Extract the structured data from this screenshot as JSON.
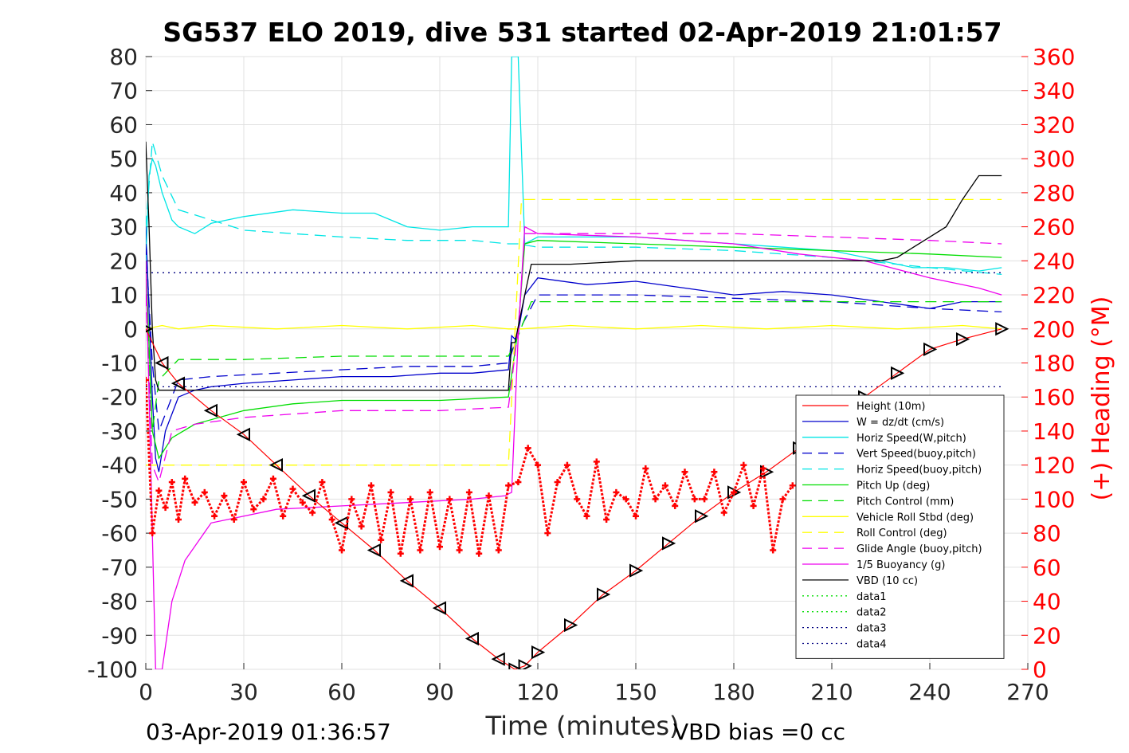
{
  "chart_data": {
    "type": "line",
    "title": "SG537 ELO 2019, dive 531 started 02-Apr-2019 21:01:57",
    "xlabel": "Time (minutes)",
    "ylabel_right": "(+) Heading (°M)",
    "footer_left": "03-Apr-2019 01:36:57",
    "footer_right": "VBD bias =0 cc",
    "xlim": [
      0,
      270
    ],
    "ylim": [
      -100,
      80
    ],
    "ylim_right": [
      0,
      360
    ],
    "x_ticks": [
      0,
      30,
      60,
      90,
      120,
      150,
      180,
      210,
      240,
      270
    ],
    "y_ticks": [
      80,
      70,
      60,
      50,
      40,
      30,
      20,
      10,
      0,
      -10,
      -20,
      -30,
      -40,
      -50,
      -60,
      -70,
      -80,
      -90,
      -100
    ],
    "y_ticks_right": [
      360,
      340,
      320,
      300,
      280,
      260,
      240,
      220,
      200,
      180,
      160,
      140,
      120,
      100,
      80,
      60,
      40,
      20,
      0
    ],
    "grid": true,
    "legend_position": "lower-right",
    "colors": {
      "heading": "#ff0000",
      "right_axis": "#ff0000"
    },
    "series": [
      {
        "name": "Height (10m)",
        "color": "#ff0000",
        "style": "solid",
        "x": [],
        "y": []
      },
      {
        "name": "W = dz/dt (cm/s)",
        "color": "#0000cc",
        "style": "solid",
        "x": [
          0,
          1,
          2,
          3,
          4,
          6,
          10,
          15,
          20,
          30,
          45,
          60,
          75,
          90,
          100,
          111,
          112,
          113,
          114,
          116,
          120,
          135,
          150,
          165,
          180,
          195,
          210,
          225,
          240,
          250,
          262
        ],
        "y": [
          30,
          5,
          -20,
          -38,
          -42,
          -30,
          -20,
          -18,
          -17,
          -16,
          -15,
          -14,
          -14,
          -13,
          -13,
          -12,
          -2,
          -3,
          -1,
          10,
          15,
          13,
          14,
          12,
          10,
          11,
          10,
          8,
          6,
          8,
          8
        ]
      },
      {
        "name": "Horiz Speed(W,pitch)",
        "color": "#00e5e5",
        "style": "solid",
        "x": [
          0,
          1,
          2,
          3,
          5,
          8,
          10,
          15,
          20,
          30,
          45,
          60,
          70,
          80,
          90,
          100,
          111,
          112,
          113,
          114,
          116,
          120,
          135,
          150,
          165,
          180,
          195,
          210,
          225,
          235,
          245,
          255,
          262
        ],
        "y": [
          20,
          45,
          50,
          48,
          40,
          32,
          30,
          28,
          31,
          33,
          35,
          34,
          34,
          30,
          29,
          30,
          30,
          80,
          80,
          80,
          25,
          27,
          27,
          27,
          26,
          25,
          24,
          23,
          20,
          18,
          18,
          17,
          18
        ]
      },
      {
        "name": "Vert Speed(buoy,pitch)",
        "color": "#0000cc",
        "style": "dash",
        "x": [
          0,
          2,
          4,
          6,
          10,
          20,
          40,
          60,
          80,
          100,
          111,
          114,
          120,
          150,
          180,
          210,
          240,
          262
        ],
        "y": [
          25,
          -10,
          -30,
          -25,
          -15,
          -14,
          -13,
          -12,
          -11,
          -11,
          -10,
          -1,
          10,
          10,
          9,
          8,
          6,
          5
        ]
      },
      {
        "name": "Horiz Speed(buoy,pitch)",
        "color": "#00e5e5",
        "style": "dash",
        "x": [
          0,
          2,
          5,
          10,
          20,
          30,
          45,
          60,
          80,
          100,
          111,
          114,
          120,
          150,
          180,
          210,
          240,
          262
        ],
        "y": [
          30,
          55,
          45,
          35,
          32,
          29,
          28,
          27,
          26,
          26,
          25,
          25,
          24,
          24,
          23,
          21,
          18,
          16
        ]
      },
      {
        "name": "Pitch Up (deg)",
        "color": "#00dd00",
        "style": "solid",
        "x": [
          0,
          2,
          4,
          8,
          15,
          30,
          45,
          60,
          90,
          111,
          114,
          116,
          120,
          150,
          180,
          210,
          240,
          262
        ],
        "y": [
          20,
          -30,
          -38,
          -32,
          -28,
          -24,
          -22,
          -21,
          -21,
          -20,
          0,
          25,
          26,
          25,
          24,
          23,
          22,
          21
        ]
      },
      {
        "name": "Pitch Control (mm)",
        "color": "#00dd00",
        "style": "dash",
        "x": [
          0,
          2,
          4,
          10,
          30,
          60,
          90,
          111,
          114,
          118,
          150,
          180,
          210,
          240,
          262
        ],
        "y": [
          10,
          -30,
          -15,
          -9,
          -9,
          -8,
          -8,
          -8,
          -2,
          8,
          8,
          8,
          8,
          8,
          8
        ]
      },
      {
        "name": "Vehicle Roll Stbd (deg)",
        "color": "#ffff00",
        "style": "solid",
        "x": [
          0,
          5,
          10,
          20,
          40,
          60,
          80,
          100,
          111,
          115,
          130,
          150,
          170,
          190,
          210,
          230,
          250,
          262
        ],
        "y": [
          0,
          1,
          0,
          1,
          0,
          1,
          0,
          1,
          0,
          0,
          1,
          0,
          1,
          0,
          1,
          0,
          1,
          0
        ]
      },
      {
        "name": "Roll Control (deg)",
        "color": "#ffff00",
        "style": "dash",
        "x": [
          0,
          20,
          40,
          60,
          80,
          100,
          111,
          115,
          130,
          150,
          170,
          190,
          210,
          230,
          250,
          262
        ],
        "y": [
          -40,
          -40,
          -40,
          -40,
          -40,
          -40,
          -40,
          38,
          38,
          38,
          38,
          38,
          38,
          38,
          38,
          38
        ]
      },
      {
        "name": "Glide Angle (buoy,pitch)",
        "color": "#ee00ee",
        "style": "dash",
        "x": [
          0,
          2,
          4,
          8,
          15,
          30,
          45,
          60,
          90,
          111,
          114,
          116,
          120,
          150,
          180,
          210,
          240,
          262
        ],
        "y": [
          10,
          -40,
          -45,
          -30,
          -28,
          -26,
          -25,
          -24,
          -24,
          -23,
          0,
          28,
          28,
          28,
          28,
          27,
          26,
          25
        ]
      },
      {
        "name": "1/5 Buoyancy (g)",
        "color": "#ee00ee",
        "style": "solid",
        "x": [
          0,
          2,
          3,
          5,
          8,
          12,
          20,
          40,
          60,
          80,
          100,
          110,
          112,
          114,
          116,
          120,
          150,
          180,
          200,
          220,
          240,
          255,
          262
        ],
        "y": [
          20,
          -60,
          -100,
          -100,
          -80,
          -68,
          -57,
          -53,
          -52,
          -51,
          -50,
          -49,
          -48,
          -2,
          30,
          28,
          27,
          25,
          22,
          20,
          15,
          12,
          10
        ]
      },
      {
        "name": "VBD (10 cc)",
        "color": "#000000",
        "style": "solid",
        "x": [
          0,
          1,
          2,
          3,
          4,
          10,
          50,
          100,
          111,
          112,
          113,
          116,
          118,
          120,
          130,
          150,
          180,
          210,
          225,
          230,
          235,
          240,
          245,
          250,
          255,
          262
        ],
        "y": [
          55,
          30,
          0,
          -15,
          -18,
          -18,
          -18,
          -18,
          -18,
          -4,
          -4,
          10,
          19,
          19,
          19,
          20,
          20,
          20,
          20,
          21,
          24,
          27,
          30,
          38,
          45,
          45
        ]
      },
      {
        "name": "data1",
        "color": "#00dd00",
        "style": "dot",
        "x": [],
        "y": []
      },
      {
        "name": "data2",
        "color": "#00dd00",
        "style": "dot",
        "x": [],
        "y": []
      },
      {
        "name": "data3",
        "color": "#000080",
        "style": "dot",
        "x": [
          0,
          262
        ],
        "y": [
          -17,
          -17
        ]
      },
      {
        "name": "data4",
        "color": "#000080",
        "style": "dot",
        "x": [
          0,
          262
        ],
        "y": [
          16.5,
          16.5
        ]
      }
    ],
    "depth_profile": {
      "color": "#ff0000",
      "marker_color": "#000000",
      "x": [
        0,
        5,
        10,
        20,
        30,
        40,
        50,
        60,
        70,
        80,
        90,
        100,
        108,
        113,
        116,
        120,
        130,
        140,
        150,
        160,
        170,
        180,
        190,
        200,
        210,
        220,
        230,
        240,
        250,
        262
      ],
      "y": [
        0,
        -10,
        -16,
        -24,
        -31,
        -40,
        -49,
        -57,
        -65,
        -74,
        -82,
        -91,
        -97,
        -100,
        -99,
        -95,
        -87,
        -78,
        -71,
        -63,
        -55,
        -48,
        -42,
        -35,
        -27,
        -20,
        -13,
        -6,
        -3,
        0
      ]
    },
    "heading": {
      "axis": "right",
      "color": "#ff0000",
      "marker": "+",
      "x": [
        0,
        2,
        4,
        6,
        8,
        10,
        12,
        15,
        18,
        21,
        24,
        27,
        30,
        33,
        36,
        39,
        42,
        45,
        48,
        51,
        54,
        57,
        60,
        63,
        66,
        69,
        72,
        75,
        78,
        81,
        84,
        87,
        90,
        93,
        96,
        99,
        102,
        105,
        108,
        111,
        114,
        117,
        120,
        123,
        126,
        129,
        132,
        135,
        138,
        141,
        144,
        147,
        150,
        153,
        156,
        159,
        162,
        165,
        168,
        171,
        174,
        177,
        180,
        183,
        186,
        189,
        192,
        195,
        198
      ],
      "y": [
        170,
        80,
        105,
        95,
        110,
        88,
        112,
        98,
        104,
        90,
        102,
        88,
        110,
        94,
        100,
        112,
        90,
        106,
        98,
        92,
        110,
        88,
        70,
        100,
        84,
        108,
        76,
        104,
        68,
        100,
        70,
        104,
        72,
        100,
        70,
        104,
        68,
        102,
        70,
        108,
        110,
        130,
        120,
        80,
        110,
        120,
        100,
        90,
        122,
        88,
        104,
        100,
        90,
        118,
        100,
        108,
        96,
        116,
        100,
        100,
        116,
        92,
        104,
        120,
        96,
        118,
        70,
        100,
        108
      ]
    }
  }
}
